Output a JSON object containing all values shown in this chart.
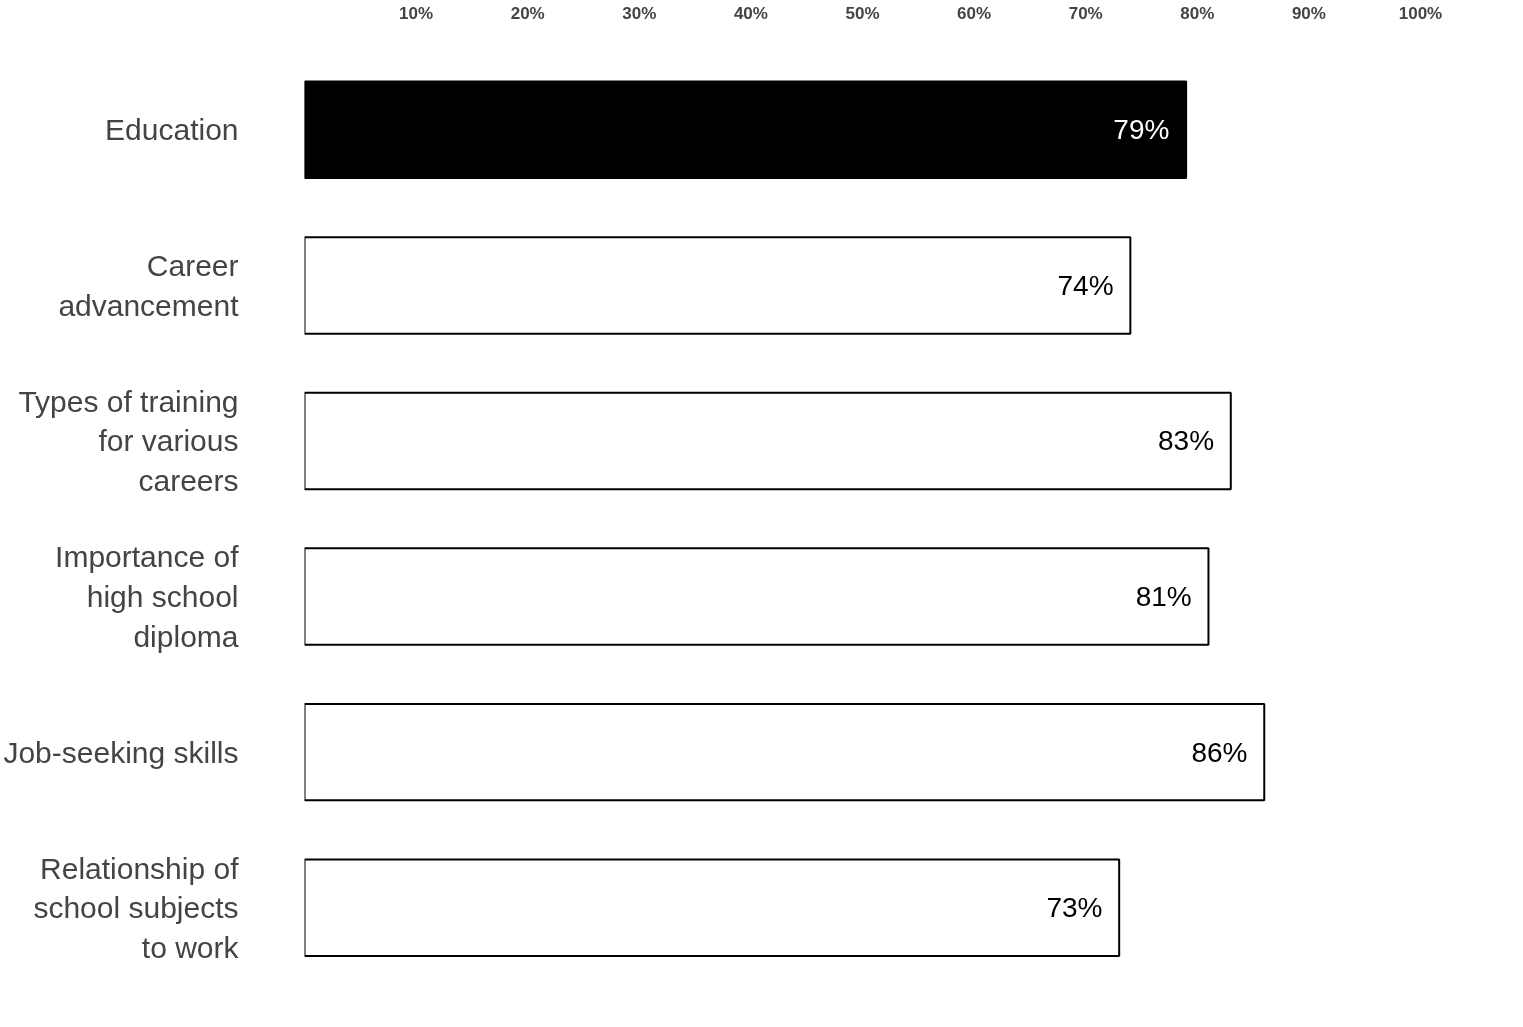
{
  "chart_data": {
    "type": "bar",
    "orientation": "horizontal",
    "categories": [
      "Education",
      "Career\nadvancement",
      "Types of training\nfor various\ncareers",
      "Importance of\nhigh school\ndiploma",
      "Job-seeking skills",
      "Relationship of\nschool subjects\nto work"
    ],
    "values": [
      79,
      74,
      83,
      81,
      86,
      73
    ],
    "colors": [
      "#000000",
      "#ffffff",
      "#ffffff",
      "#ffffff",
      "#ffffff",
      "#ffffff"
    ],
    "xlim": [
      0,
      100
    ],
    "xticks": [
      {
        "value": 10,
        "label": "10%"
      },
      {
        "value": 20,
        "label": "20%"
      },
      {
        "value": 30,
        "label": "30%"
      },
      {
        "value": 40,
        "label": "40%"
      },
      {
        "value": 50,
        "label": "50%"
      },
      {
        "value": 60,
        "label": "60%"
      },
      {
        "value": 70,
        "label": "70%"
      },
      {
        "value": 80,
        "label": "80%"
      },
      {
        "value": 90,
        "label": "90%"
      },
      {
        "value": 100,
        "label": "100%"
      }
    ],
    "value_labels": [
      "79%",
      "74%",
      "83%",
      "81%",
      "86%",
      "73%"
    ],
    "grid": false
  }
}
